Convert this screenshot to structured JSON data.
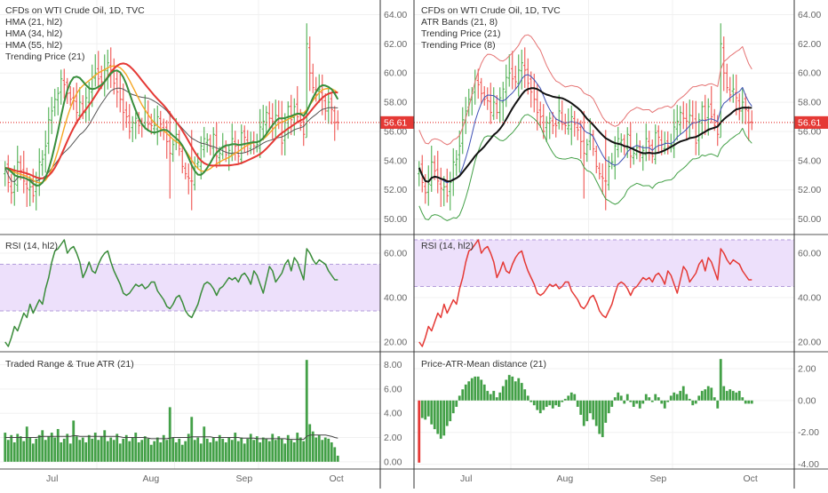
{
  "colors": {
    "up": "#4caf50",
    "down": "#ef5350",
    "hma21": "#388e3c",
    "hma34": "#f5a623",
    "hma55": "#e53935",
    "trend": "#555555",
    "band_upper": "#e57373",
    "band_lower": "#43a047",
    "trend21": "#111111",
    "trend8": "#3f51b5",
    "rsi_left": "#3a8c3a",
    "rsi_right": "#e53935",
    "rsi_band": "#ede0fb",
    "bar_green": "#43a047",
    "bar_red": "#e53935",
    "price_line": "#e53935",
    "grid": "#f0f0f0",
    "axis_text": "#666666",
    "legend_text": "#333333"
  },
  "x_axis": {
    "labels": [
      "Jul",
      "Aug",
      "Sep",
      "Oct"
    ]
  },
  "left": {
    "price_legend": [
      "CFDs on WTI Crude Oil, 1D, TVC",
      "HMA (21, hl2)",
      "HMA (34, hl2)",
      "HMA (55, hl2)",
      "Trending Price (21)"
    ],
    "rsi_legend": "RSI (14, hl2)",
    "atr_legend": "Traded Range & True ATR (21)"
  },
  "right": {
    "price_legend": [
      "CFDs on WTI Crude Oil, 1D, TVC",
      "ATR Bands (21, 8)",
      "Trending Price (21)",
      "Trending Price (8)"
    ],
    "rsi_legend": "RSI (14, hl2)",
    "dist_legend": "Price-ATR-Mean distance (21)"
  },
  "price_badge": "56.61",
  "chart_data": [
    {
      "type": "ohlc",
      "title": "CFDs on WTI Crude Oil, 1D, TVC",
      "ylim": [
        49,
        65
      ],
      "y_ticks": [
        "64.00",
        "62.00",
        "60.00",
        "58.00",
        "56.00",
        "54.00",
        "52.00",
        "50.00"
      ],
      "last_price": 56.61,
      "close": [
        53.5,
        52.5,
        51.8,
        52.4,
        53.9,
        53.3,
        52.6,
        52.1,
        52.2,
        51.6,
        52.5,
        53.9,
        54.1,
        55.0,
        56.8,
        57.4,
        58.2,
        58.6,
        59.6,
        59.2,
        58.6,
        58.2,
        58.1,
        57.3,
        58.0,
        57.3,
        58.3,
        58.9,
        59.7,
        60.0,
        59.6,
        59.4,
        60.2,
        60.7,
        60.2,
        59.3,
        58.7,
        58.2,
        57.3,
        57.0,
        56.0,
        56.6,
        56.9,
        56.4,
        56.4,
        57.4,
        56.5,
        56.4,
        56.4,
        57.0,
        56.5,
        56.1,
        55.3,
        54.5,
        55.1,
        55.8,
        54.8,
        53.6,
        53.1,
        52.8,
        52.6,
        53.6,
        53.9,
        55.0,
        55.5,
        55.4,
        55.0,
        55.8,
        54.3,
        54.5,
        54.9,
        54.4,
        54.7,
        55.5,
        55.0,
        54.3,
        55.9,
        55.6,
        55.1,
        55.2,
        55.0,
        55.1,
        56.3,
        56.7,
        57.3,
        56.9,
        56.7,
        57.1,
        56.6,
        55.2,
        56.8,
        57.7,
        56.8,
        57.7,
        57.0,
        56.4,
        55.8,
        62.0,
        60.0,
        59.0,
        58.5,
        58.9,
        58.3,
        57.4,
        58.0,
        57.5,
        56.6,
        56.6
      ],
      "annotation": "56.61"
    },
    {
      "type": "line",
      "title": "RSI (14, hl2)",
      "ylim": [
        16,
        68
      ],
      "y_ticks": [
        "60.00",
        "40.00",
        "20.00"
      ],
      "band": [
        34,
        55
      ],
      "values": [
        20,
        18,
        22,
        27,
        25,
        29,
        33,
        31,
        37,
        33,
        36,
        39,
        37,
        44,
        49,
        56,
        61,
        62,
        64,
        66,
        60,
        62,
        63,
        60,
        56,
        49,
        52,
        56,
        52,
        51,
        55,
        58,
        60,
        61,
        56,
        52,
        49,
        46,
        42,
        41,
        42,
        44,
        46,
        45,
        46,
        44,
        45,
        47,
        47,
        43,
        41,
        39,
        36,
        35,
        37,
        40,
        41,
        38,
        34,
        32,
        31,
        34,
        37,
        42,
        46,
        47,
        46,
        44,
        41,
        44,
        45,
        47,
        49,
        48,
        49,
        47,
        50,
        51,
        49,
        46,
        52,
        50,
        46,
        42,
        48,
        54,
        52,
        47,
        49,
        51,
        55,
        57,
        52,
        58,
        56,
        52,
        48,
        62,
        60,
        57,
        55,
        57,
        56,
        55,
        52,
        50,
        48,
        48
      ]
    },
    {
      "type": "bar",
      "title": "Traded Range & True ATR (21)",
      "ylim": [
        -0.6,
        9
      ],
      "y_ticks": [
        "8.00",
        "6.00",
        "4.00",
        "2.00",
        "0.00"
      ],
      "values": [
        2.4,
        1.8,
        2.2,
        1.6,
        2.3,
        2.1,
        1.7,
        2.9,
        2.0,
        1.5,
        1.9,
        2.2,
        2.6,
        1.8,
        2.1,
        2.4,
        2.0,
        2.7,
        1.6,
        1.9,
        2.3,
        1.5,
        3.4,
        2.1,
        1.8,
        2.0,
        1.6,
        2.2,
        1.9,
        2.4,
        1.8,
        2.1,
        2.6,
        1.7,
        2.0,
        1.8,
        2.3,
        1.5,
        1.9,
        2.2,
        1.7,
        2.0,
        2.4,
        1.6,
        1.8,
        2.1,
        1.9,
        1.4,
        1.7,
        2.0,
        1.6,
        2.2,
        1.8,
        4.5,
        2.0,
        1.6,
        1.9,
        1.4,
        1.7,
        2.3,
        3.7,
        1.8,
        2.0,
        1.5,
        2.9,
        1.9,
        1.6,
        2.0,
        1.7,
        2.2,
        1.9,
        1.6,
        2.0,
        1.8,
        2.4,
        1.7,
        2.0,
        1.5,
        1.9,
        2.3,
        1.8,
        2.1,
        1.6,
        2.0,
        1.9,
        1.7,
        2.3,
        1.8,
        2.1,
        1.9,
        1.5,
        2.2,
        1.8,
        1.6,
        2.4,
        2.0,
        1.7,
        8.4,
        3.1,
        2.5,
        2.0,
        2.2,
        1.8,
        2.0,
        1.9,
        1.6,
        1.2,
        0.5
      ],
      "atr": [
        2.0,
        2.0,
        2.0,
        2.0,
        2.0,
        2.0,
        2.0,
        2.0,
        2.0,
        2.0,
        2.0,
        2.05,
        2.1,
        2.1,
        2.1,
        2.1,
        2.1,
        2.1,
        2.1,
        2.1,
        2.1,
        2.1,
        2.15,
        2.15,
        2.1,
        2.1,
        2.1,
        2.1,
        2.1,
        2.1,
        2.1,
        2.1,
        2.1,
        2.1,
        2.1,
        2.1,
        2.1,
        2.05,
        2.0,
        2.0,
        2.0,
        2.0,
        2.0,
        2.0,
        2.0,
        2.0,
        1.95,
        1.9,
        1.9,
        1.9,
        1.9,
        1.9,
        1.9,
        1.95,
        2.0,
        2.0,
        2.0,
        2.0,
        2.0,
        2.0,
        2.05,
        2.05,
        2.05,
        2.05,
        2.05,
        2.05,
        2.05,
        2.0,
        2.0,
        2.0,
        2.0,
        2.0,
        2.0,
        2.0,
        2.0,
        2.0,
        1.95,
        1.95,
        1.95,
        1.95,
        1.95,
        1.9,
        1.9,
        1.9,
        1.9,
        1.9,
        1.9,
        1.9,
        1.9,
        1.9,
        1.9,
        1.85,
        1.85,
        1.85,
        1.85,
        1.85,
        1.85,
        2.1,
        2.2,
        2.2,
        2.2,
        2.2,
        2.2,
        2.2,
        2.15,
        2.1,
        2.0,
        1.95
      ]
    },
    {
      "type": "ohlc",
      "title": "CFDs on WTI Crude Oil, 1D, TVC",
      "ylim": [
        49,
        65
      ],
      "y_ticks": [
        "64.00",
        "62.00",
        "60.00",
        "58.00",
        "56.00",
        "54.00",
        "52.00",
        "50.00"
      ],
      "last_price": 56.61,
      "annotation": "56.61"
    },
    {
      "type": "line",
      "title": "RSI (14, hl2)",
      "ylim": [
        16,
        68
      ],
      "y_ticks": [
        "60.00",
        "40.00",
        "20.00"
      ],
      "band": [
        45,
        66
      ]
    },
    {
      "type": "bar",
      "title": "Price-ATR-Mean distance (21)",
      "ylim": [
        -4.3,
        3
      ],
      "y_ticks": [
        "2.00",
        "0.00",
        "-2.00",
        "-4.00"
      ],
      "values": [
        -3.9,
        -1.1,
        -1.2,
        -1.0,
        -1.5,
        -1.8,
        -2.1,
        -2.4,
        -2.2,
        -1.6,
        -1.3,
        -0.8,
        -0.4,
        0.3,
        0.7,
        1.0,
        1.2,
        1.4,
        1.5,
        1.5,
        1.3,
        1.0,
        0.6,
        0.4,
        0.6,
        0.2,
        0.5,
        0.9,
        1.3,
        1.6,
        1.5,
        1.2,
        1.4,
        1.1,
        0.7,
        0.3,
        -0.1,
        -0.3,
        -0.6,
        -0.8,
        -0.6,
        -0.4,
        -0.3,
        -0.5,
        -0.3,
        -0.4,
        -0.1,
        0.1,
        0.3,
        0.5,
        0.4,
        -0.4,
        -0.9,
        -1.6,
        -1.3,
        -0.8,
        -1.2,
        -1.6,
        -2.1,
        -2.3,
        -1.4,
        -0.8,
        -0.4,
        0.2,
        0.5,
        0.3,
        -0.2,
        0.4,
        -0.1,
        -0.4,
        -0.2,
        -0.5,
        -0.2,
        0.4,
        0.2,
        -0.1,
        0.4,
        0.2,
        -0.2,
        -0.5,
        -0.1,
        0.3,
        0.5,
        0.4,
        0.6,
        0.9,
        0.4,
        0.1,
        -0.3,
        -0.2,
        0.3,
        0.6,
        0.7,
        0.9,
        0.8,
        0.2,
        -0.5,
        2.6,
        0.9,
        0.6,
        0.7,
        0.6,
        0.5,
        0.6,
        0.2,
        -0.2,
        -0.2,
        -0.2
      ]
    }
  ]
}
